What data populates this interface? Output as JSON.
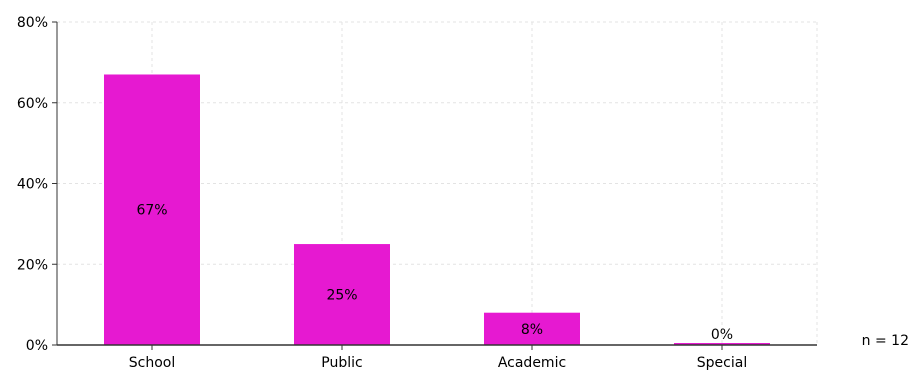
{
  "chart_data": {
    "type": "bar",
    "categories": [
      "School",
      "Public",
      "Academic",
      "Special"
    ],
    "values": [
      67,
      25,
      8,
      0
    ],
    "value_labels": [
      "67%",
      "25%",
      "8%",
      "0%"
    ],
    "ylim": [
      0,
      80
    ],
    "yticks": [
      0,
      20,
      40,
      60,
      80
    ],
    "ytick_labels": [
      "0%",
      "20%",
      "40%",
      "60%",
      "80%"
    ],
    "grid": true,
    "bar_color": "#e619d1",
    "note": "n = 12"
  }
}
